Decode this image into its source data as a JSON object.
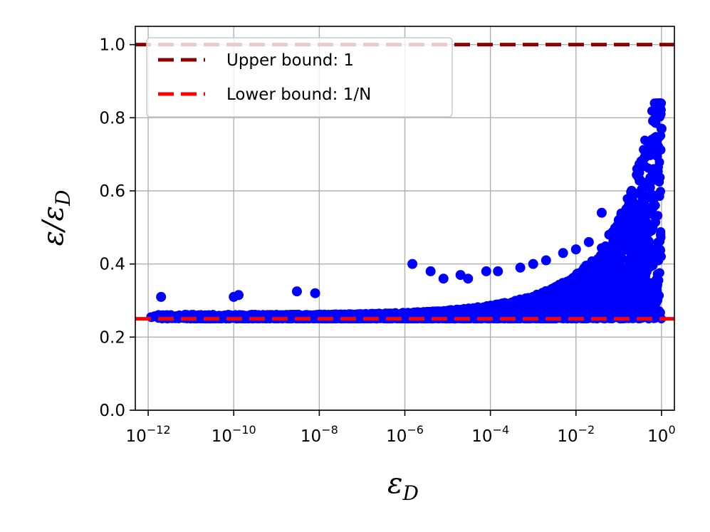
{
  "chart_data": {
    "type": "scatter",
    "xscale": "log",
    "xlim": [
      5e-13,
      2
    ],
    "ylim": [
      0,
      1.05
    ],
    "grid": true,
    "xlabel": "ε_D",
    "ylabel": "ε/ε_D",
    "xticks": [
      {
        "value": 1e-12,
        "base": "10",
        "exp": "−12"
      },
      {
        "value": 1e-10,
        "base": "10",
        "exp": "−10"
      },
      {
        "value": 1e-08,
        "base": "10",
        "exp": "−8"
      },
      {
        "value": 1e-06,
        "base": "10",
        "exp": "−6"
      },
      {
        "value": 0.0001,
        "base": "10",
        "exp": "−4"
      },
      {
        "value": 0.01,
        "base": "10",
        "exp": "−2"
      },
      {
        "value": 1,
        "base": "10",
        "exp": "0"
      }
    ],
    "yticks": [
      {
        "value": 0.0,
        "label": "0.0"
      },
      {
        "value": 0.2,
        "label": "0.2"
      },
      {
        "value": 0.4,
        "label": "0.4"
      },
      {
        "value": 0.6,
        "label": "0.6"
      },
      {
        "value": 0.8,
        "label": "0.8"
      },
      {
        "value": 1.0,
        "label": "1.0"
      }
    ],
    "legend_position": "top-left",
    "reference_lines": [
      {
        "name": "Upper bound: 1",
        "y": 1.0,
        "color": "#8b0000",
        "style": "dashed"
      },
      {
        "name": "Lower bound: 1/N",
        "y": 0.25,
        "color": "#ff0000",
        "style": "dashed"
      }
    ],
    "scatter_color": "#0000ff",
    "points": [
      {
        "x": 2e-12,
        "y": 0.31
      },
      {
        "x": 1e-10,
        "y": 0.31
      },
      {
        "x": 1.3e-10,
        "y": 0.315
      },
      {
        "x": 3e-09,
        "y": 0.325
      },
      {
        "x": 8e-09,
        "y": 0.32
      },
      {
        "x": 1.5e-06,
        "y": 0.4
      },
      {
        "x": 4e-06,
        "y": 0.38
      },
      {
        "x": 8e-06,
        "y": 0.36
      },
      {
        "x": 2e-05,
        "y": 0.37
      },
      {
        "x": 3e-05,
        "y": 0.36
      },
      {
        "x": 8e-05,
        "y": 0.38
      },
      {
        "x": 0.00015,
        "y": 0.38
      },
      {
        "x": 0.0005,
        "y": 0.39
      },
      {
        "x": 0.001,
        "y": 0.4
      },
      {
        "x": 0.002,
        "y": 0.41
      },
      {
        "x": 0.005,
        "y": 0.43
      },
      {
        "x": 0.01,
        "y": 0.44
      },
      {
        "x": 0.02,
        "y": 0.46
      },
      {
        "x": 0.04,
        "y": 0.54
      },
      {
        "x": 0.06,
        "y": 0.48
      },
      {
        "x": 0.1,
        "y": 0.52
      },
      {
        "x": 0.15,
        "y": 0.55
      },
      {
        "x": 0.2,
        "y": 0.6
      },
      {
        "x": 0.3,
        "y": 0.65
      },
      {
        "x": 0.4,
        "y": 0.69
      },
      {
        "x": 0.5,
        "y": 0.72
      },
      {
        "x": 0.6,
        "y": 0.74
      },
      {
        "x": 0.8,
        "y": 0.83
      },
      {
        "x": 0.9,
        "y": 0.82
      },
      {
        "x": 0.95,
        "y": 0.81
      },
      {
        "x": 1.0,
        "y": 0.77
      }
    ]
  }
}
